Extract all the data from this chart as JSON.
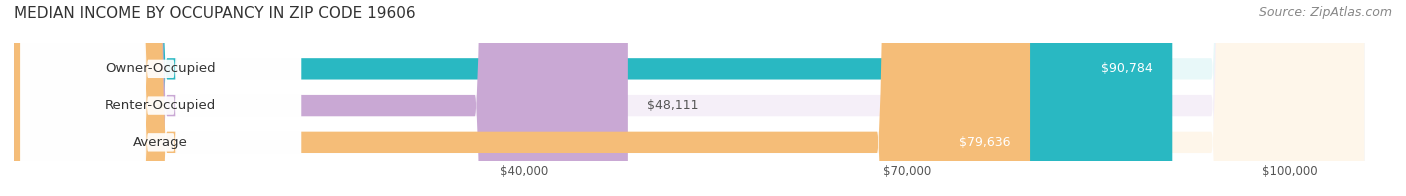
{
  "title": "MEDIAN INCOME BY OCCUPANCY IN ZIP CODE 19606",
  "source": "Source: ZipAtlas.com",
  "categories": [
    "Owner-Occupied",
    "Renter-Occupied",
    "Average"
  ],
  "values": [
    90784,
    48111,
    79636
  ],
  "bar_colors": [
    "#29B8C2",
    "#C9A8D4",
    "#F5BD78"
  ],
  "bar_bg_colors": [
    "#E8F8F9",
    "#F5EFF8",
    "#FEF6EA"
  ],
  "value_labels": [
    "$90,784",
    "$48,111",
    "$79,636"
  ],
  "x_ticks": [
    40000,
    70000,
    100000
  ],
  "x_tick_labels": [
    "$40,000",
    "$70,000",
    "$100,000"
  ],
  "xlim": [
    0,
    108000
  ],
  "background_color": "#ffffff",
  "title_fontsize": 11,
  "source_fontsize": 9,
  "label_fontsize": 9.5,
  "value_fontsize": 9
}
